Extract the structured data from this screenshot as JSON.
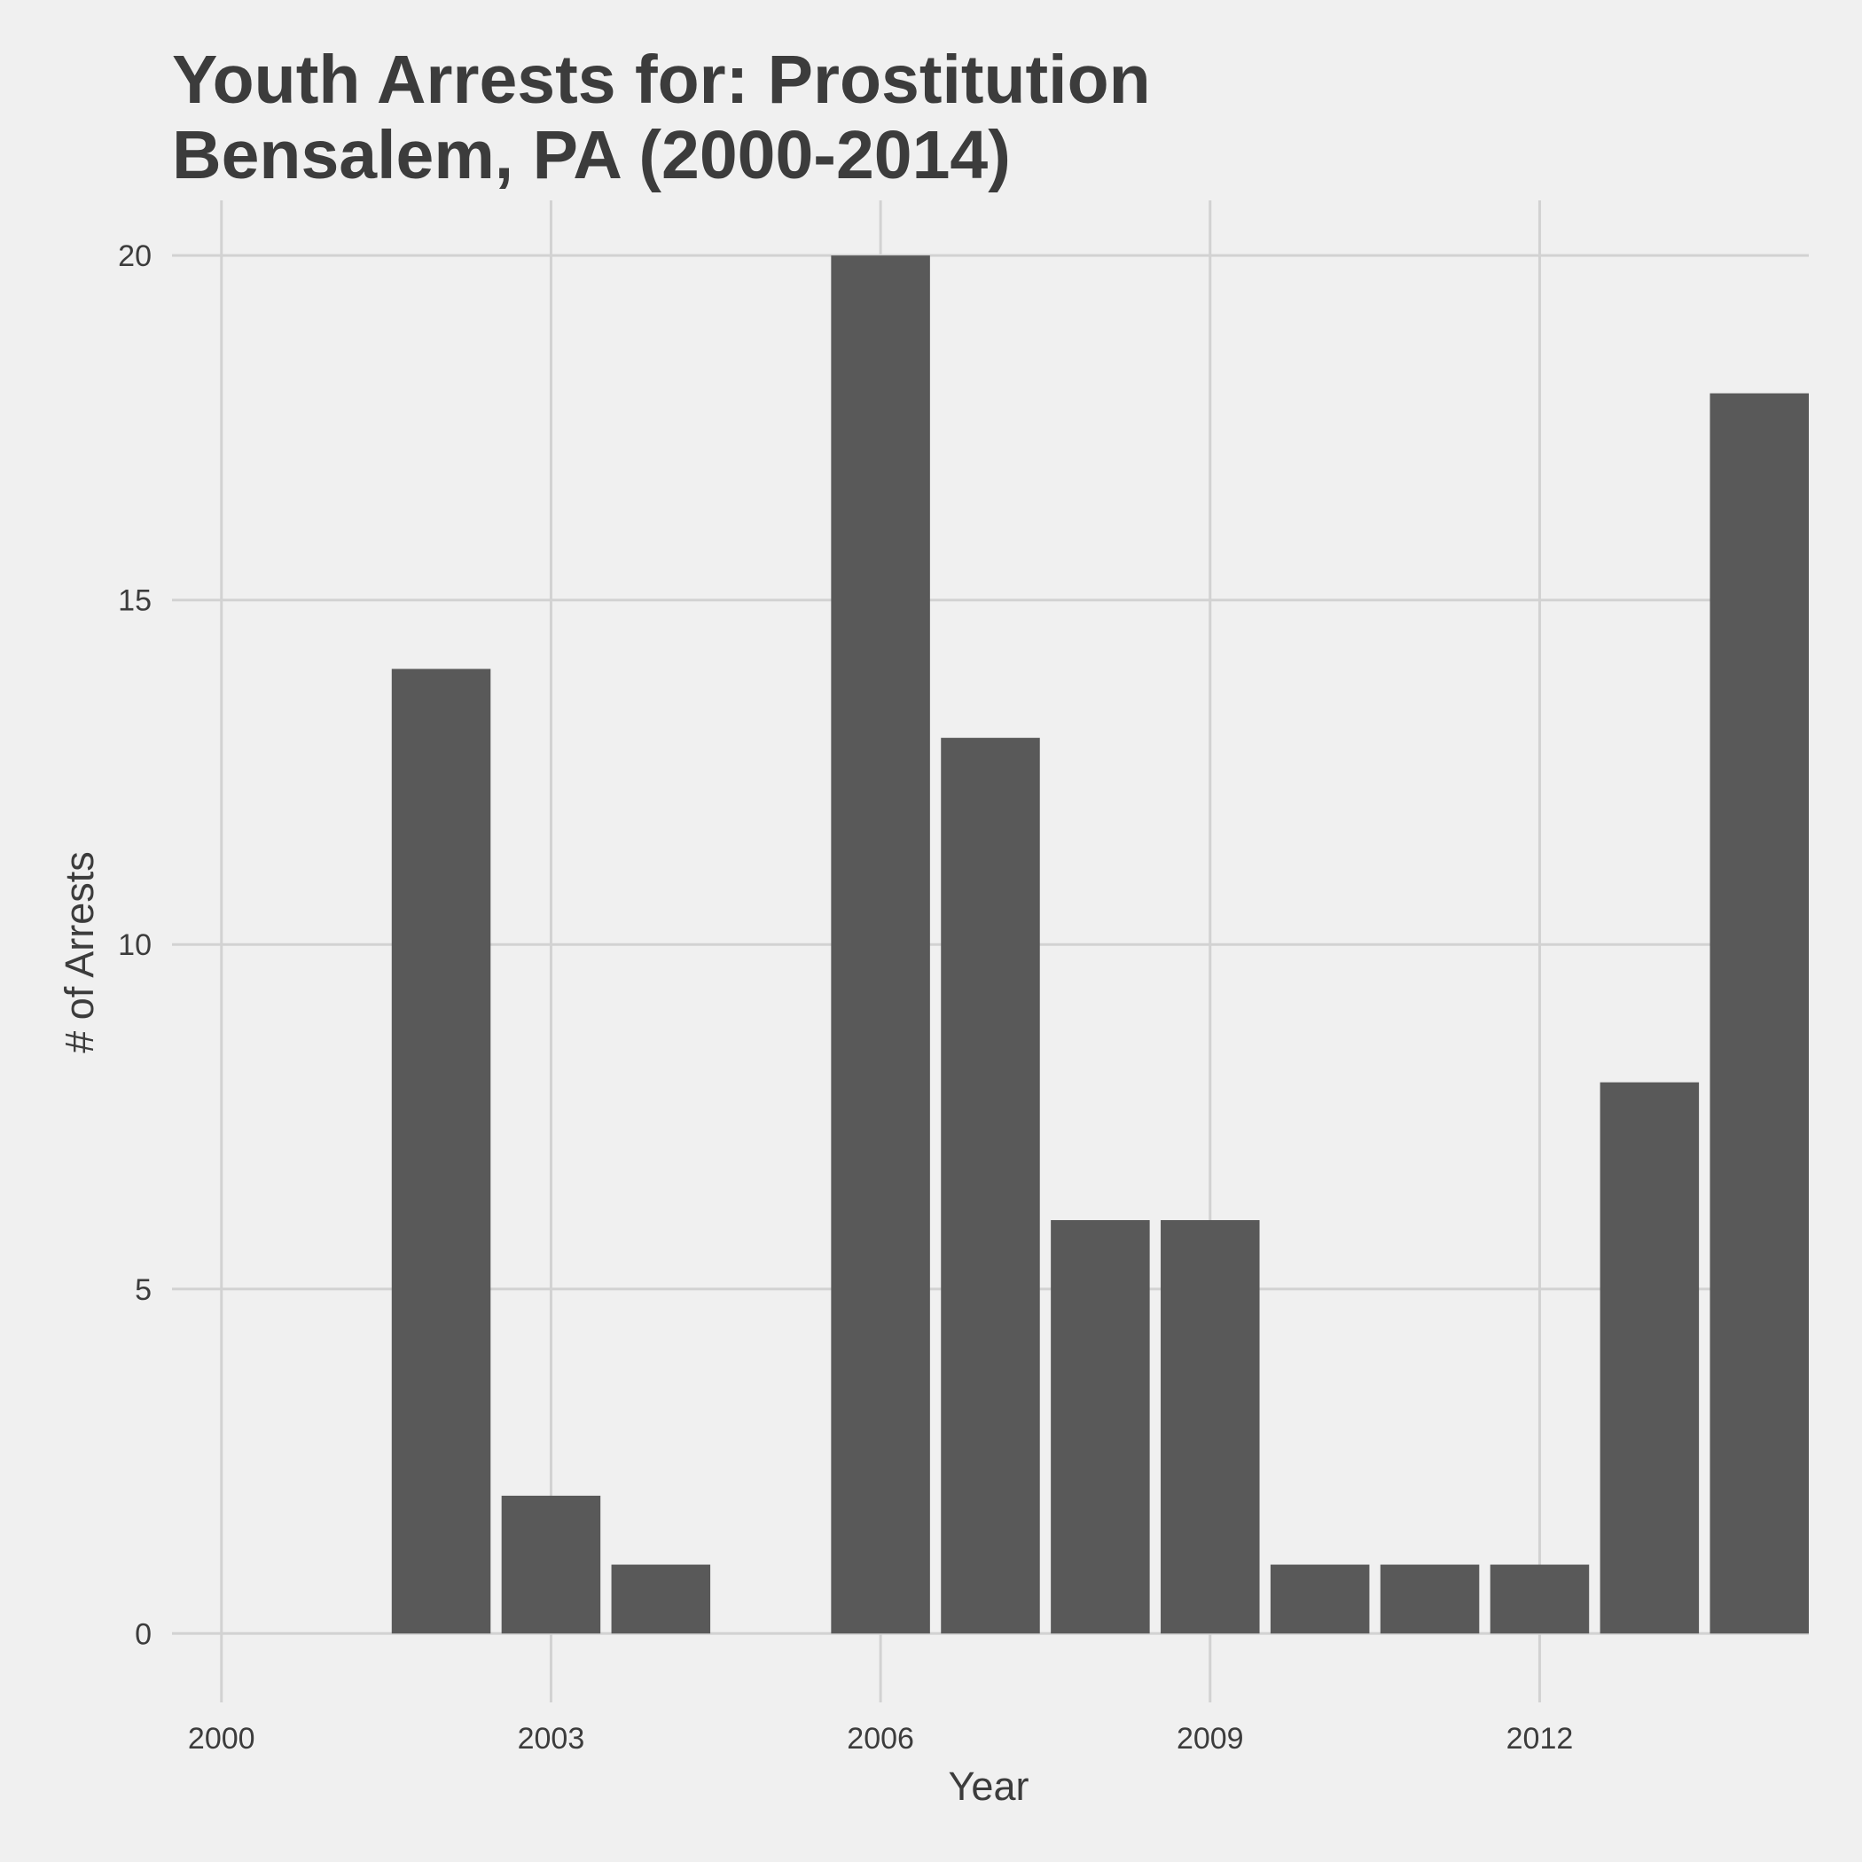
{
  "chart_data": {
    "type": "bar",
    "title_lines": [
      "Youth Arrests for: Prostitution",
      "Bensalem, PA (2000-2014)"
    ],
    "xlabel": "Year",
    "ylabel": "# of Arrests",
    "x": [
      2000,
      2001,
      2002,
      2003,
      2004,
      2005,
      2006,
      2007,
      2008,
      2009,
      2010,
      2011,
      2012,
      2013,
      2014
    ],
    "values": [
      0,
      0,
      14,
      2,
      1,
      0,
      20,
      13,
      6,
      6,
      1,
      1,
      1,
      8,
      18
    ],
    "xticks": [
      2000,
      2003,
      2006,
      2009,
      2012
    ],
    "xtick_labels": [
      "2000",
      "2003",
      "2006",
      "2009",
      "2012"
    ],
    "yticks": [
      0,
      5,
      10,
      15,
      20
    ],
    "ytick_labels": [
      "0",
      "5",
      "10",
      "15",
      "20"
    ],
    "xlim": [
      1999.55,
      2014.45
    ],
    "ylim": [
      -1,
      20.8
    ],
    "grid": true,
    "legend": "none",
    "bar_color": "#595959",
    "grid_color": "#d2d2d2",
    "background_color": "#f0f0f0",
    "text_color": "#3c3c3c"
  }
}
